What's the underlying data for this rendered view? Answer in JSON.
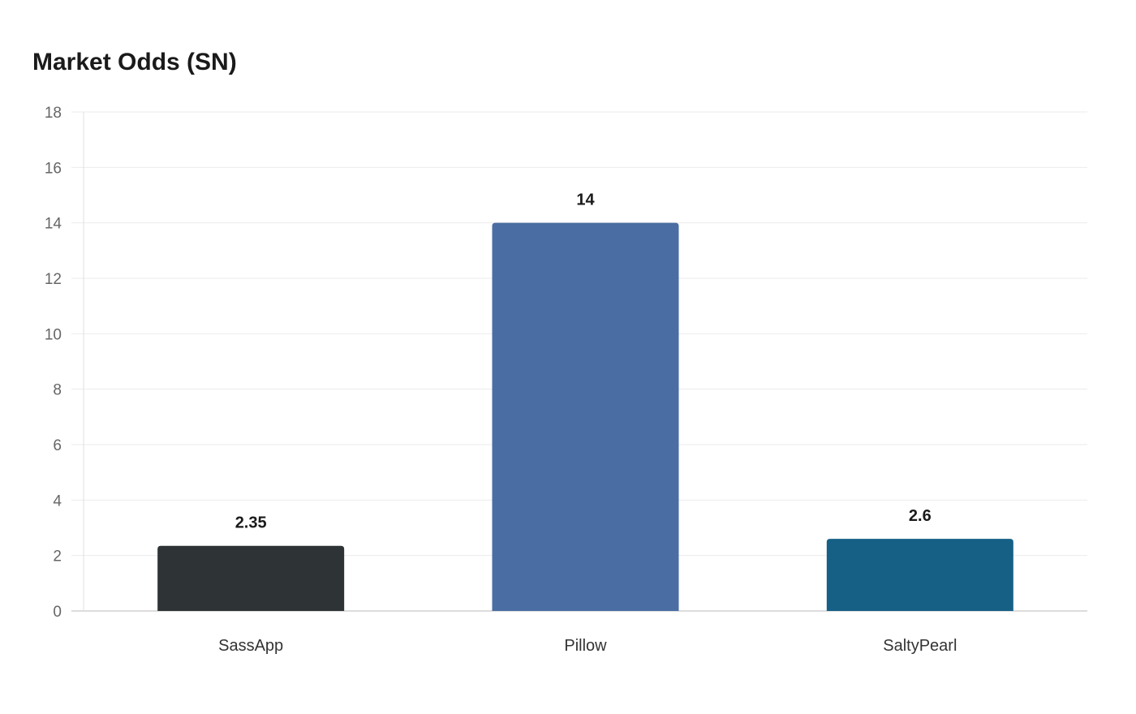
{
  "chart_data": {
    "type": "bar",
    "title": "Market Odds (SN)",
    "xlabel": "",
    "ylabel": "",
    "categories": [
      "SassApp",
      "Pillow",
      "SaltyPearl"
    ],
    "values": [
      2.35,
      14,
      2.6
    ],
    "value_labels": [
      "2.35",
      "14",
      "2.6"
    ],
    "colors": [
      "#2e3336",
      "#4a6da3",
      "#166086"
    ],
    "ylim": [
      0,
      18
    ],
    "yticks": [
      0,
      2,
      4,
      6,
      8,
      10,
      12,
      14,
      16,
      18
    ],
    "grid": true,
    "legend": "none"
  }
}
